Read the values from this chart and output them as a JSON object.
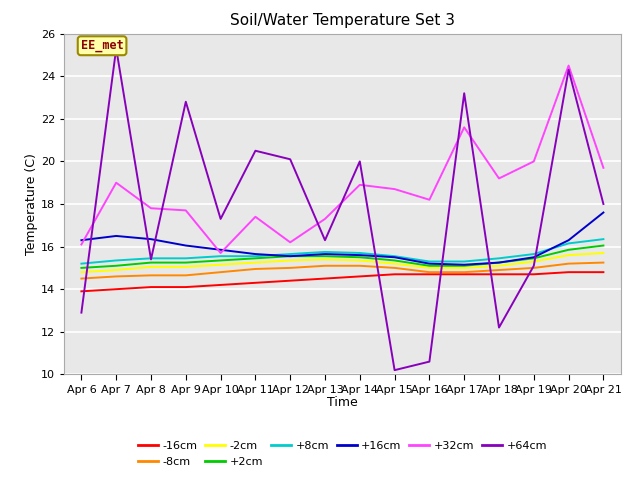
{
  "title": "Soil/Water Temperature Set 3",
  "xlabel": "Time",
  "ylabel": "Temperature (C)",
  "ylim": [
    10,
    26
  ],
  "background_color": "#e8e8e8",
  "annotation_text": "EE_met",
  "annotation_color": "#8b0000",
  "annotation_bg": "#ffffaa",
  "annotation_border": "#998800",
  "tick_labels": [
    "Apr 6",
    "Apr 7",
    "Apr 8",
    "Apr 9",
    "Apr 10",
    "Apr 11",
    "Apr 12",
    "Apr 13",
    "Apr 14",
    "Apr 15",
    "Apr 16",
    "Apr 17",
    "Apr 18",
    "Apr 19",
    "Apr 20",
    "Apr 21"
  ],
  "series": {
    "-16cm": {
      "color": "#ff0000",
      "data": [
        13.9,
        14.0,
        14.1,
        14.1,
        14.2,
        14.3,
        14.4,
        14.5,
        14.6,
        14.7,
        14.7,
        14.7,
        14.7,
        14.7,
        14.8,
        14.8
      ]
    },
    "-8cm": {
      "color": "#ff8800",
      "data": [
        14.5,
        14.6,
        14.65,
        14.65,
        14.8,
        14.95,
        15.0,
        15.1,
        15.1,
        15.0,
        14.8,
        14.8,
        14.9,
        15.0,
        15.2,
        15.25
      ]
    },
    "-2cm": {
      "color": "#ffff00",
      "data": [
        14.8,
        14.9,
        15.05,
        15.05,
        15.15,
        15.25,
        15.35,
        15.4,
        15.35,
        15.2,
        15.0,
        15.0,
        15.1,
        15.3,
        15.6,
        15.7
      ]
    },
    "+2cm": {
      "color": "#00cc00",
      "data": [
        15.0,
        15.1,
        15.25,
        15.25,
        15.35,
        15.45,
        15.55,
        15.55,
        15.5,
        15.35,
        15.1,
        15.1,
        15.25,
        15.45,
        15.85,
        16.05
      ]
    },
    "+8cm": {
      "color": "#00cccc",
      "data": [
        15.2,
        15.35,
        15.45,
        15.45,
        15.55,
        15.55,
        15.65,
        15.75,
        15.7,
        15.55,
        15.3,
        15.3,
        15.45,
        15.65,
        16.15,
        16.35
      ]
    },
    "+16cm": {
      "color": "#0000cc",
      "data": [
        16.3,
        16.5,
        16.35,
        16.05,
        15.85,
        15.65,
        15.55,
        15.65,
        15.6,
        15.5,
        15.2,
        15.15,
        15.25,
        15.5,
        16.3,
        17.6
      ]
    },
    "+32cm": {
      "color": "#ff44ff",
      "data": [
        16.1,
        19.0,
        17.8,
        17.7,
        15.7,
        17.4,
        16.2,
        17.3,
        18.9,
        18.7,
        18.2,
        21.6,
        19.2,
        20.0,
        24.5,
        19.7
      ]
    },
    "+64cm": {
      "color": "#8800bb",
      "data": [
        12.9,
        25.3,
        15.4,
        22.8,
        17.3,
        20.5,
        20.1,
        16.3,
        20.0,
        10.2,
        10.6,
        23.2,
        12.2,
        15.1,
        24.3,
        18.0
      ]
    }
  },
  "legend_order": [
    "-16cm",
    "-8cm",
    "-2cm",
    "+2cm",
    "+8cm",
    "+16cm",
    "+32cm",
    "+64cm"
  ]
}
